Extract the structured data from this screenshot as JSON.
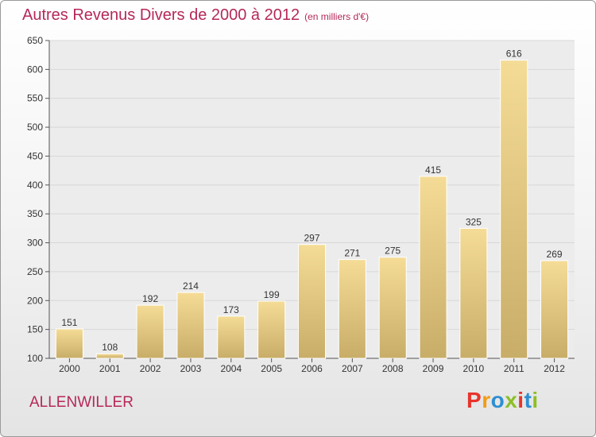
{
  "header": {
    "title": "Autres Revenus Divers de 2000 à 2012",
    "subtitle": "(en milliers d'€)"
  },
  "footer": {
    "commune": "ALLENWILLER",
    "brand": "Proxiti"
  },
  "colors": {
    "title": "#b5285a",
    "bar_light": "#f5dc96",
    "bar_dark": "#c8ad68",
    "brand_letters": [
      "#e8342b",
      "#f39c12",
      "#2e8fd1",
      "#8cbf26",
      "#e8342b",
      "#2e8fd1",
      "#8cbf26"
    ]
  },
  "chart_data": {
    "type": "bar",
    "title": "Autres Revenus Divers de 2000 à 2012",
    "subtitle": "(en milliers d'€)",
    "categories": [
      "2000",
      "2001",
      "2002",
      "2003",
      "2004",
      "2005",
      "2006",
      "2007",
      "2008",
      "2009",
      "2010",
      "2011",
      "2012"
    ],
    "values": [
      151,
      108,
      192,
      214,
      173,
      199,
      297,
      271,
      275,
      415,
      325,
      616,
      269
    ],
    "ylim": [
      100,
      650
    ],
    "yticks": [
      100,
      150,
      200,
      250,
      300,
      350,
      400,
      450,
      500,
      550,
      600,
      650
    ],
    "grid": true,
    "legend": "none"
  }
}
